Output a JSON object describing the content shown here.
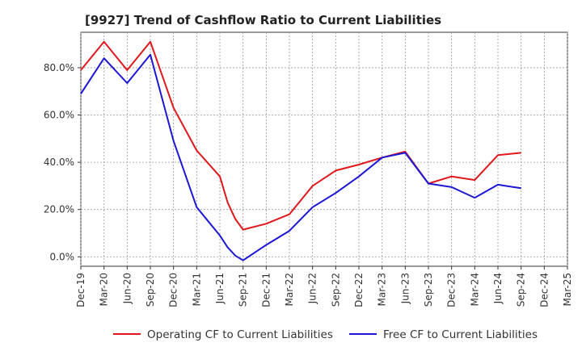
{
  "chart_data": {
    "type": "line",
    "title": "[9927]  Trend of Cashflow Ratio to Current Liabilities",
    "xlabel": "",
    "ylabel": "",
    "ylim": [
      -4,
      95
    ],
    "y_ticks": [
      {
        "value": 0,
        "label": "0.0%"
      },
      {
        "value": 20,
        "label": "20.0%"
      },
      {
        "value": 40,
        "label": "40.0%"
      },
      {
        "value": 60,
        "label": "60.0%"
      },
      {
        "value": 80,
        "label": "80.0%"
      }
    ],
    "x_tick_labels": [
      "Dec-19",
      "Mar-20",
      "Jun-20",
      "Sep-20",
      "Dec-20",
      "Mar-21",
      "Jun-21",
      "Sep-21",
      "Dec-21",
      "Mar-22",
      "Jun-22",
      "Sep-22",
      "Dec-22",
      "Mar-23",
      "Jun-23",
      "Sep-23",
      "Dec-23",
      "Mar-24",
      "Jun-24",
      "Sep-24",
      "Dec-24",
      "Mar-25"
    ],
    "grid": true,
    "legend_position": "bottom",
    "series": [
      {
        "name": "Operating CF to Current Liabilities",
        "color": "#e0171c",
        "points": [
          {
            "x": "Dec-19",
            "y": 79
          },
          {
            "x": "Mar-20",
            "y": 91
          },
          {
            "x": "Jun-20",
            "y": 79
          },
          {
            "x": "Sep-20",
            "y": 91
          },
          {
            "x": "Dec-20",
            "y": 63
          },
          {
            "x": "Mar-21",
            "y": 45
          },
          {
            "x": "Jun-21",
            "y": 34
          },
          {
            "x": "Jul-21",
            "y": 23
          },
          {
            "x": "Aug-21",
            "y": 16
          },
          {
            "x": "Sep-21",
            "y": 11.5
          },
          {
            "x": "Dec-21",
            "y": 14
          },
          {
            "x": "Mar-22",
            "y": 18
          },
          {
            "x": "Jun-22",
            "y": 30
          },
          {
            "x": "Sep-22",
            "y": 36.5
          },
          {
            "x": "Dec-22",
            "y": 39
          },
          {
            "x": "Mar-23",
            "y": 42
          },
          {
            "x": "Jun-23",
            "y": 44.5
          },
          {
            "x": "Sep-23",
            "y": 31
          },
          {
            "x": "Dec-23",
            "y": 34
          },
          {
            "x": "Mar-24",
            "y": 32.5
          },
          {
            "x": "Jun-24",
            "y": 43
          },
          {
            "x": "Sep-24",
            "y": 44
          }
        ]
      },
      {
        "name": "Free CF to Current Liabilities",
        "color": "#1c17d4",
        "points": [
          {
            "x": "Dec-19",
            "y": 69
          },
          {
            "x": "Mar-20",
            "y": 84
          },
          {
            "x": "Jun-20",
            "y": 73.5
          },
          {
            "x": "Sep-20",
            "y": 85.5
          },
          {
            "x": "Dec-20",
            "y": 49
          },
          {
            "x": "Mar-21",
            "y": 21
          },
          {
            "x": "Jun-21",
            "y": 9
          },
          {
            "x": "Jul-21",
            "y": 4
          },
          {
            "x": "Aug-21",
            "y": 0.5
          },
          {
            "x": "Sep-21",
            "y": -1.5
          },
          {
            "x": "Dec-21",
            "y": 5
          },
          {
            "x": "Mar-22",
            "y": 11
          },
          {
            "x": "Jun-22",
            "y": 21
          },
          {
            "x": "Sep-22",
            "y": 27
          },
          {
            "x": "Dec-22",
            "y": 34
          },
          {
            "x": "Mar-23",
            "y": 42
          },
          {
            "x": "Jun-23",
            "y": 44
          },
          {
            "x": "Sep-23",
            "y": 31
          },
          {
            "x": "Dec-23",
            "y": 29.5
          },
          {
            "x": "Mar-24",
            "y": 25
          },
          {
            "x": "Jun-24",
            "y": 30.5
          },
          {
            "x": "Sep-24",
            "y": 29
          }
        ]
      }
    ]
  }
}
